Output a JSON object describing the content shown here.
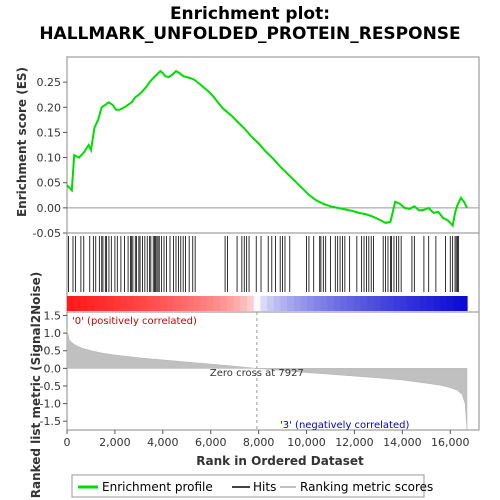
{
  "chart_data": {
    "type": "line",
    "title_line1": "Enrichment plot:",
    "title_line2": "HALLMARK_UNFOLDED_PROTEIN_RESPONSE",
    "es_panel": {
      "ylabel": "Enrichment score (ES)",
      "ylim": [
        -0.05,
        0.3
      ],
      "yticks": [
        -0.05,
        0.0,
        0.05,
        0.1,
        0.15,
        0.2,
        0.25
      ],
      "ytick_labels": [
        "-0.05",
        "0.00",
        "0.05",
        "0.10",
        "0.15",
        "0.20",
        "0.25"
      ],
      "line_color": "#00dd00",
      "profile": {
        "x": [
          0,
          200,
          300,
          500,
          700,
          900,
          1000,
          1150,
          1300,
          1450,
          1600,
          1750,
          1900,
          2050,
          2200,
          2400,
          2550,
          2700,
          2850,
          3000,
          3150,
          3300,
          3450,
          3600,
          3750,
          3900,
          4000,
          4100,
          4250,
          4400,
          4550,
          4700,
          4850,
          5000,
          5150,
          5300,
          5500,
          5700,
          5900,
          6100,
          6300,
          6500,
          6700,
          6900,
          7100,
          7400,
          7700,
          8000,
          8300,
          8600,
          8900,
          9200,
          9500,
          9800,
          10100,
          10400,
          10700,
          11000,
          11300,
          11600,
          11900,
          12200,
          12500,
          12800,
          13100,
          13300,
          13500,
          13700,
          13900,
          14100,
          14300,
          14500,
          14700,
          14900,
          15100,
          15300,
          15500,
          15700,
          15900,
          16100,
          16200,
          16300,
          16450,
          16600,
          16700
        ],
        "y": [
          0.045,
          0.035,
          0.105,
          0.1,
          0.11,
          0.125,
          0.115,
          0.16,
          0.175,
          0.2,
          0.205,
          0.21,
          0.205,
          0.195,
          0.195,
          0.2,
          0.205,
          0.21,
          0.22,
          0.225,
          0.232,
          0.24,
          0.25,
          0.258,
          0.265,
          0.272,
          0.268,
          0.262,
          0.26,
          0.265,
          0.272,
          0.268,
          0.262,
          0.26,
          0.258,
          0.255,
          0.248,
          0.24,
          0.232,
          0.222,
          0.21,
          0.198,
          0.19,
          0.182,
          0.172,
          0.158,
          0.142,
          0.128,
          0.112,
          0.098,
          0.082,
          0.068,
          0.054,
          0.04,
          0.026,
          0.015,
          0.008,
          0.003,
          0.0,
          -0.003,
          -0.006,
          -0.01,
          -0.013,
          -0.018,
          -0.025,
          -0.03,
          -0.028,
          0.012,
          0.008,
          0.0,
          -0.002,
          0.003,
          -0.005,
          -0.004,
          0.0,
          -0.01,
          -0.008,
          -0.02,
          -0.025,
          -0.035,
          -0.01,
          0.005,
          0.02,
          0.01,
          0.0
        ]
      }
    },
    "hits_panel": {
      "hit_positions": [
        60,
        250,
        350,
        580,
        700,
        950,
        1100,
        1200,
        1350,
        1450,
        1500,
        1600,
        1650,
        1750,
        1850,
        2000,
        2100,
        2250,
        2400,
        2550,
        2650,
        2700,
        2750,
        2850,
        2900,
        3000,
        3050,
        3150,
        3250,
        3350,
        3450,
        3500,
        3600,
        3650,
        3700,
        3750,
        3800,
        3850,
        3950,
        4050,
        4150,
        4300,
        4450,
        4550,
        4650,
        4750,
        4850,
        4950,
        5100,
        5250,
        5350,
        6600,
        6700,
        7100,
        7300,
        7400,
        7500,
        7600,
        7900,
        8100,
        8400,
        8550,
        8700,
        8900,
        9000,
        9100,
        9300,
        10000,
        10100,
        10300,
        10550,
        10600,
        10700,
        10800,
        11000,
        11200,
        11300,
        11400,
        11500,
        11600,
        11800,
        12100,
        12300,
        12400,
        12500,
        12600,
        12700,
        12800,
        13200,
        13300,
        13400,
        13500,
        13550,
        13650,
        13750,
        13850,
        13950,
        14400,
        14500,
        14900,
        15100,
        15400,
        15800,
        16000,
        16100,
        16200,
        16250,
        16300,
        16350
      ]
    },
    "ranked_panel": {
      "ylabel": "Ranked list metric (Signal2Noise)",
      "ylim": [
        -1.75,
        1.6
      ],
      "yticks": [
        1.5,
        1.0,
        0.5,
        0.0,
        -0.5,
        -1.0,
        -1.5
      ],
      "ytick_labels": [
        "1.5",
        "1.0",
        "0.5",
        "0.0",
        "-0.5",
        "-1.0",
        "-1.5"
      ],
      "metric_profile": {
        "x": [
          0,
          100,
          300,
          600,
          1000,
          1500,
          2000,
          3000,
          4000,
          5000,
          6000,
          7000,
          7927,
          9000,
          10000,
          11000,
          12000,
          13000,
          14000,
          15000,
          15600,
          16000,
          16300,
          16500,
          16620,
          16700
        ],
        "y": [
          1.1,
          0.8,
          0.68,
          0.58,
          0.5,
          0.43,
          0.38,
          0.3,
          0.24,
          0.18,
          0.12,
          0.06,
          0.0,
          -0.06,
          -0.12,
          -0.17,
          -0.22,
          -0.27,
          -0.33,
          -0.42,
          -0.48,
          -0.55,
          -0.62,
          -0.75,
          -1.0,
          -1.75
        ]
      },
      "zero_cross_x": 7927,
      "zero_cross_label": "Zero cross at 7927",
      "pos_label": "'0' (positively correlated)",
      "neg_label": "'3' (negatively correlated)"
    },
    "x_axis": {
      "xlabel": "Rank in Ordered Dataset",
      "xlim": [
        0,
        17200
      ],
      "xticks": [
        0,
        2000,
        4000,
        6000,
        8000,
        10000,
        12000,
        14000,
        16000
      ],
      "xtick_labels": [
        "0",
        "2,000",
        "4,000",
        "6,000",
        "8,000",
        "10,000",
        "12,000",
        "14,000",
        "16,000"
      ],
      "n_genes": 16700
    },
    "legend": {
      "items": [
        {
          "label": "Enrichment profile",
          "color": "#00dd00"
        },
        {
          "label": "Hits",
          "color": "#000000"
        },
        {
          "label": "Ranking metric scores",
          "color": "#c0c0c0"
        }
      ]
    }
  }
}
